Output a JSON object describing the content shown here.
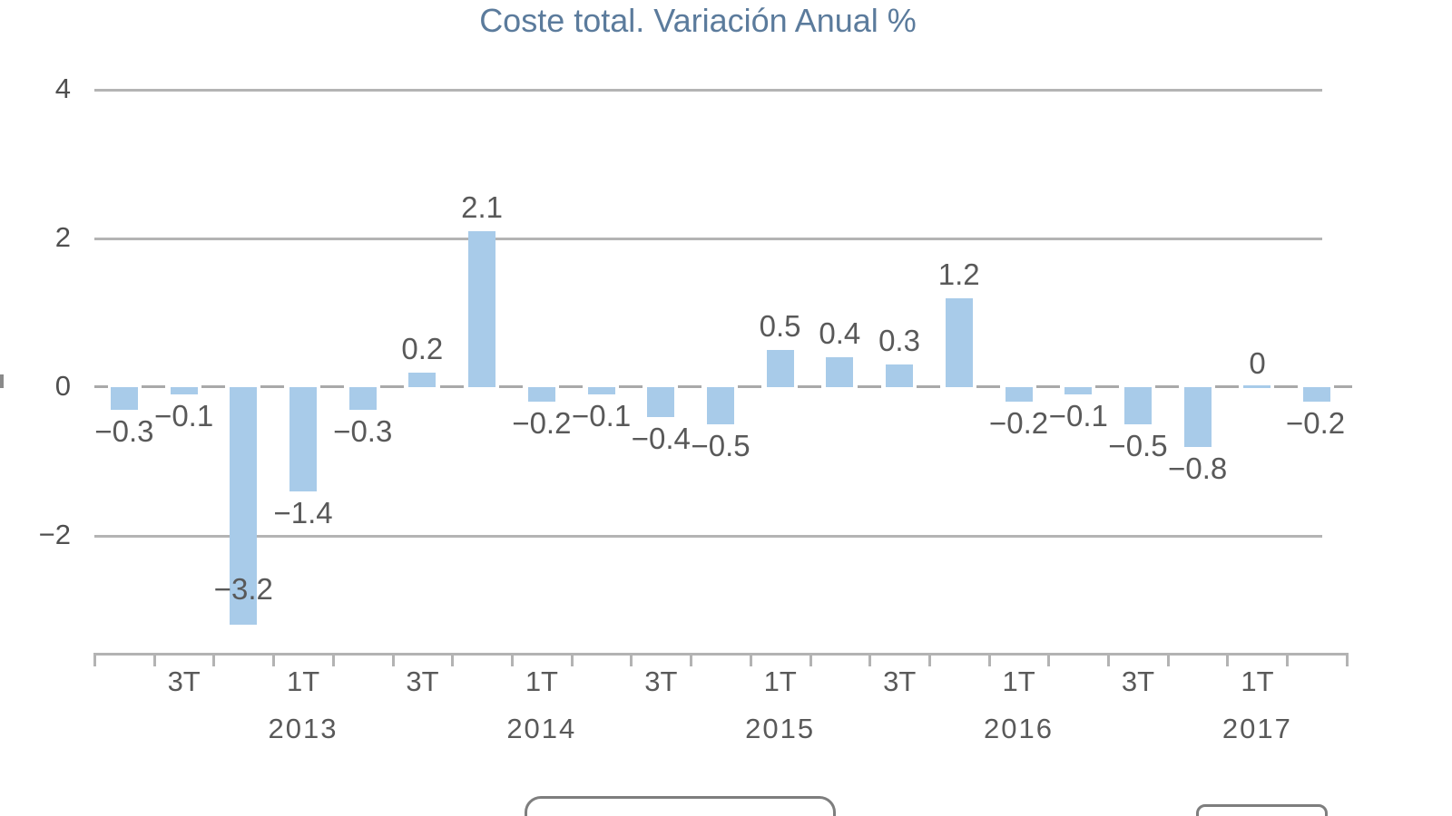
{
  "chart_data": {
    "type": "bar",
    "title": "Coste total. Variación Anual %",
    "xlabel": "",
    "ylabel": "",
    "ylim": [
      -4,
      4.4
    ],
    "y_ticks": [
      4,
      2,
      0,
      -2
    ],
    "y_tick_labels": [
      "4",
      "2",
      "0",
      "−2"
    ],
    "grid": "horizontal solid gridlines at 4, 2 and -2; dashed line at 0",
    "legend_position": "none",
    "series_name": "Coste total. Variación Anual %",
    "points": [
      {
        "period": "2012T2",
        "value": -0.3,
        "label": "−0.3"
      },
      {
        "period": "2012T3",
        "value": -0.1,
        "label": "−0.1"
      },
      {
        "period": "2012T4",
        "value": -3.2,
        "label": "−3.2"
      },
      {
        "period": "2013T1",
        "value": -1.4,
        "label": "−1.4"
      },
      {
        "period": "2013T2",
        "value": -0.3,
        "label": "−0.3"
      },
      {
        "period": "2013T3",
        "value": 0.2,
        "label": "0.2"
      },
      {
        "period": "2013T4",
        "value": 2.1,
        "label": "2.1"
      },
      {
        "period": "2014T1",
        "value": -0.2,
        "label": "−0.2"
      },
      {
        "period": "2014T2",
        "value": -0.1,
        "label": "−0.1"
      },
      {
        "period": "2014T3",
        "value": -0.4,
        "label": "−0.4"
      },
      {
        "period": "2014T4",
        "value": -0.5,
        "label": "−0.5"
      },
      {
        "period": "2015T1",
        "value": 0.5,
        "label": "0.5"
      },
      {
        "period": "2015T2",
        "value": 0.4,
        "label": "0.4"
      },
      {
        "period": "2015T3",
        "value": 0.3,
        "label": "0.3"
      },
      {
        "period": "2015T4",
        "value": 1.2,
        "label": "1.2"
      },
      {
        "period": "2016T1",
        "value": -0.2,
        "label": "−0.2"
      },
      {
        "period": "2016T2",
        "value": -0.1,
        "label": "−0.1"
      },
      {
        "period": "2016T3",
        "value": -0.5,
        "label": "−0.5"
      },
      {
        "period": "2016T4",
        "value": -0.8,
        "label": "−0.8"
      },
      {
        "period": "2017T1",
        "value": 0,
        "label": "0"
      },
      {
        "period": "2017T2",
        "value": -0.2,
        "label": "−0.2"
      }
    ],
    "x_tick_labels": [
      {
        "label": "3T",
        "year": "",
        "slot": 1
      },
      {
        "label": "1T",
        "year": "2013",
        "slot": 3
      },
      {
        "label": "3T",
        "year": "",
        "slot": 5
      },
      {
        "label": "1T",
        "year": "2014",
        "slot": 7
      },
      {
        "label": "3T",
        "year": "",
        "slot": 9
      },
      {
        "label": "1T",
        "year": "2015",
        "slot": 11
      },
      {
        "label": "3T",
        "year": "",
        "slot": 13
      },
      {
        "label": "1T",
        "year": "2016",
        "slot": 15
      },
      {
        "label": "3T",
        "year": "",
        "slot": 17
      },
      {
        "label": "1T",
        "year": "2017",
        "slot": 19
      }
    ]
  },
  "colors": {
    "bar": "#a8cbe9",
    "title": "#5b7b9c",
    "data_label": "#595959",
    "axis_label": "#595959",
    "gridline": "#b4b4b4",
    "background": "#ffffff"
  },
  "footer": {
    "left_button_label": "",
    "right_button_label": ""
  }
}
